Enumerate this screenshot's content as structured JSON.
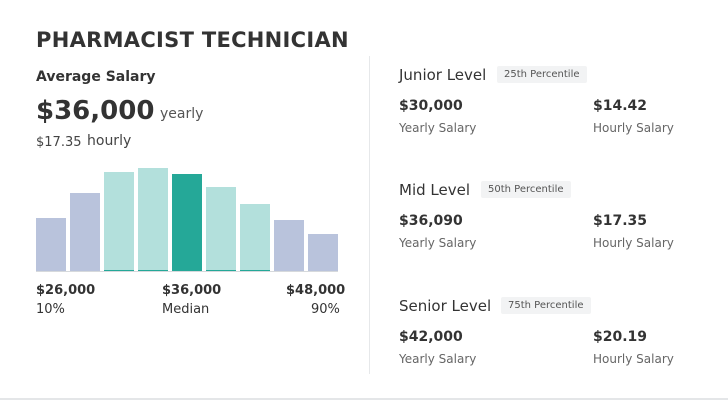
{
  "title": "PHARMACIST TECHNICIAN",
  "average": {
    "label": "Average Salary",
    "yearly_value": "$36,000",
    "yearly_unit": "yearly",
    "hourly_value": "$17.35",
    "hourly_unit": "hourly"
  },
  "colors": {
    "outer_bin": "#b9c3dc",
    "inner_bin": "#b3e0dc",
    "median_bin": "#25a898",
    "accent_line": "#25a898"
  },
  "chart_data": {
    "type": "bar",
    "title": "",
    "xlabel": "",
    "ylabel": "",
    "bins": 9,
    "values": [
      0.54,
      0.79,
      1.0,
      1.04,
      0.98,
      0.85,
      0.68,
      0.52,
      0.38
    ],
    "highlight_index": 4,
    "inner_range": [
      2,
      6
    ],
    "ticks": [
      {
        "label": "$26,000",
        "sub": "10%"
      },
      {
        "label": "$36,000",
        "sub": "Median"
      },
      {
        "label": "$48,000",
        "sub": "90%"
      }
    ]
  },
  "levels": [
    {
      "name": "Junior Level",
      "percentile": "25th Percentile",
      "yearly": "$30,000",
      "yearly_caption": "Yearly Salary",
      "hourly": "$14.42",
      "hourly_caption": "Hourly Salary"
    },
    {
      "name": "Mid Level",
      "percentile": "50th Percentile",
      "yearly": "$36,090",
      "yearly_caption": "Yearly Salary",
      "hourly": "$17.35",
      "hourly_caption": "Hourly Salary"
    },
    {
      "name": "Senior Level",
      "percentile": "75th Percentile",
      "yearly": "$42,000",
      "yearly_caption": "Yearly Salary",
      "hourly": "$20.19",
      "hourly_caption": "Hourly Salary"
    }
  ]
}
